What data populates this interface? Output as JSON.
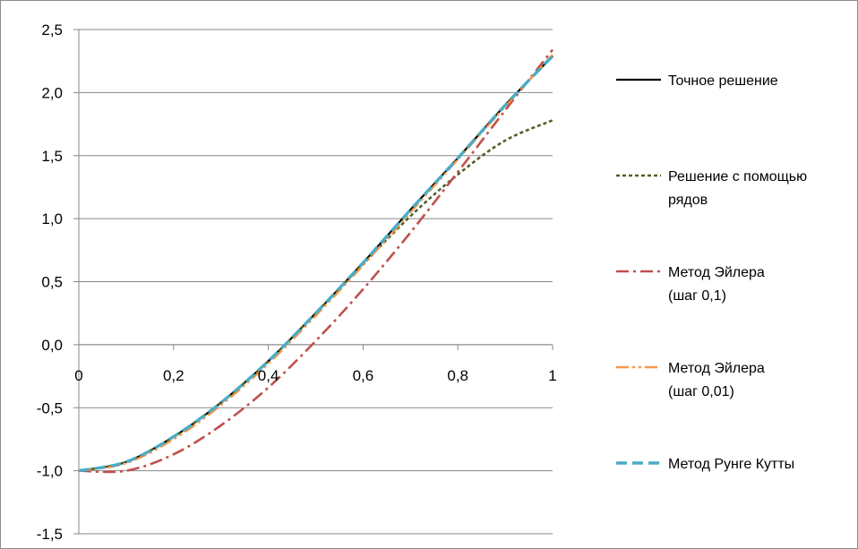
{
  "chart_data": {
    "type": "line",
    "title": "",
    "xlabel": "",
    "ylabel": "",
    "xlim": [
      0,
      1
    ],
    "ylim": [
      -1.5,
      2.5
    ],
    "x_ticks": [
      0,
      0.2,
      0.4,
      0.6,
      0.8,
      1
    ],
    "x_tick_labels": [
      "0",
      "0,2",
      "0,4",
      "0,6",
      "0,8",
      "1"
    ],
    "y_ticks": [
      2.5,
      2.0,
      1.5,
      1.0,
      0.5,
      0.0,
      -0.5,
      -1.0,
      -1.5
    ],
    "y_tick_labels": [
      "2,5",
      "2,0",
      "1,5",
      "1,0",
      "0,5",
      "0,0",
      "-0,5",
      "-1,0",
      "-1,5"
    ],
    "grid": "horizontal",
    "legend_position": "right",
    "series": [
      {
        "name": "Точное решение",
        "color": "#000000",
        "style": "solid",
        "x": [
          0,
          0.1,
          0.2,
          0.3,
          0.4,
          0.5,
          0.6,
          0.7,
          0.8,
          0.9,
          1.0
        ],
        "y": [
          -1.0,
          -0.93,
          -0.73,
          -0.46,
          -0.13,
          0.25,
          0.65,
          1.07,
          1.48,
          1.9,
          2.29
        ]
      },
      {
        "name": "Решение с помощью рядов",
        "color": "#4F6228",
        "style": "dotted",
        "x": [
          0,
          0.1,
          0.2,
          0.3,
          0.4,
          0.5,
          0.6,
          0.7,
          0.8,
          0.9,
          1.0
        ],
        "y": [
          -1.0,
          -0.93,
          -0.73,
          -0.46,
          -0.13,
          0.25,
          0.64,
          1.02,
          1.35,
          1.62,
          1.78
        ]
      },
      {
        "name": "Метод Эйлера (шаг 0,1)",
        "color": "#C0504D",
        "style": "dashdot",
        "x": [
          0,
          0.1,
          0.2,
          0.3,
          0.4,
          0.5,
          0.6,
          0.7,
          0.8,
          0.9,
          1.0
        ],
        "y": [
          -1.0,
          -1.0,
          -0.87,
          -0.64,
          -0.34,
          0.03,
          0.44,
          0.89,
          1.37,
          1.86,
          2.34
        ]
      },
      {
        "name": "Метод Эйлера (шаг 0,01)",
        "color": "#F79646",
        "style": "dashdotdot",
        "x": [
          0,
          0.1,
          0.2,
          0.3,
          0.4,
          0.5,
          0.6,
          0.7,
          0.8,
          0.9,
          1.0
        ],
        "y": [
          -1.0,
          -0.94,
          -0.75,
          -0.48,
          -0.15,
          0.23,
          0.63,
          1.05,
          1.47,
          1.89,
          2.3
        ]
      },
      {
        "name": "Метод Рунге Кутты",
        "color": "#4BACC6",
        "style": "dashed",
        "x": [
          0,
          0.1,
          0.2,
          0.3,
          0.4,
          0.5,
          0.6,
          0.7,
          0.8,
          0.9,
          1.0
        ],
        "y": [
          -1.0,
          -0.93,
          -0.73,
          -0.46,
          -0.13,
          0.25,
          0.65,
          1.07,
          1.48,
          1.9,
          2.29
        ]
      }
    ],
    "legend": [
      {
        "lines": [
          "Точное решение"
        ]
      },
      {
        "lines": [
          "Решение с помощью",
          "рядов"
        ]
      },
      {
        "lines": [
          "Метод Эйлера",
          "(шаг 0,1)"
        ]
      },
      {
        "lines": [
          "Метод Эйлера",
          "(шаг 0,01)"
        ]
      },
      {
        "lines": [
          "Метод Рунге Кутты"
        ]
      }
    ]
  }
}
